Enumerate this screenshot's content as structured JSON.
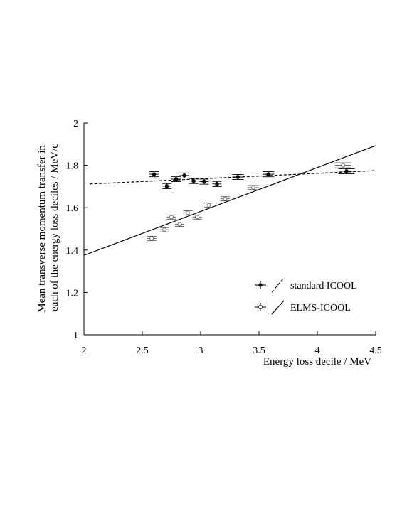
{
  "chart_data": {
    "type": "scatter",
    "xlabel": "Energy loss decile / MeV",
    "ylabel_lines": [
      "Mean transverse momentum transfer in",
      "each of the energy loss deciles / MeV/c"
    ],
    "xlim": [
      2,
      4.5
    ],
    "ylim": [
      1,
      2
    ],
    "xticks": [
      2,
      2.5,
      3,
      3.5,
      4,
      4.5
    ],
    "xtick_labels": [
      "2",
      "2.5",
      "3",
      "3.5",
      "4",
      "4.5"
    ],
    "yticks": [
      1,
      1.2,
      1.4,
      1.6,
      1.8,
      2
    ],
    "ytick_labels": [
      "1",
      "1.2",
      "1.4",
      "1.6",
      "1.8",
      "2"
    ],
    "grid": false,
    "legend_position": "bottom-right",
    "series": [
      {
        "name": "standard ICOOL",
        "marker": "filled-circle",
        "line_style": "dashed",
        "points": [
          {
            "x": 2.6,
            "y": 1.758,
            "xerr": 0.04,
            "yerr": 0.012
          },
          {
            "x": 2.71,
            "y": 1.702,
            "xerr": 0.04,
            "yerr": 0.012
          },
          {
            "x": 2.79,
            "y": 1.735,
            "xerr": 0.04,
            "yerr": 0.012
          },
          {
            "x": 2.86,
            "y": 1.752,
            "xerr": 0.04,
            "yerr": 0.012
          },
          {
            "x": 2.94,
            "y": 1.726,
            "xerr": 0.04,
            "yerr": 0.012
          },
          {
            "x": 3.03,
            "y": 1.723,
            "xerr": 0.04,
            "yerr": 0.012
          },
          {
            "x": 3.14,
            "y": 1.712,
            "xerr": 0.04,
            "yerr": 0.012
          },
          {
            "x": 3.32,
            "y": 1.745,
            "xerr": 0.05,
            "yerr": 0.012
          },
          {
            "x": 3.58,
            "y": 1.758,
            "xerr": 0.05,
            "yerr": 0.012
          },
          {
            "x": 4.25,
            "y": 1.772,
            "xerr": 0.07,
            "yerr": 0.012
          }
        ],
        "fit": {
          "x": [
            2.05,
            4.5
          ],
          "y": [
            1.712,
            1.775
          ]
        }
      },
      {
        "name": "ELMS-ICOOL",
        "marker": "open-circle",
        "line_style": "solid",
        "points": [
          {
            "x": 2.58,
            "y": 1.455,
            "xerr": 0.04,
            "yerr": 0.01
          },
          {
            "x": 2.69,
            "y": 1.496,
            "xerr": 0.04,
            "yerr": 0.01
          },
          {
            "x": 2.75,
            "y": 1.556,
            "xerr": 0.04,
            "yerr": 0.01
          },
          {
            "x": 2.82,
            "y": 1.522,
            "xerr": 0.04,
            "yerr": 0.01
          },
          {
            "x": 2.89,
            "y": 1.576,
            "xerr": 0.04,
            "yerr": 0.01
          },
          {
            "x": 2.97,
            "y": 1.556,
            "xerr": 0.04,
            "yerr": 0.01
          },
          {
            "x": 3.07,
            "y": 1.612,
            "xerr": 0.04,
            "yerr": 0.01
          },
          {
            "x": 3.21,
            "y": 1.642,
            "xerr": 0.04,
            "yerr": 0.01
          },
          {
            "x": 3.45,
            "y": 1.695,
            "xerr": 0.05,
            "yerr": 0.01
          },
          {
            "x": 4.22,
            "y": 1.8,
            "xerr": 0.07,
            "yerr": 0.012
          }
        ],
        "fit": {
          "x": [
            2,
            4.5
          ],
          "y": [
            1.375,
            1.893
          ]
        }
      }
    ]
  }
}
